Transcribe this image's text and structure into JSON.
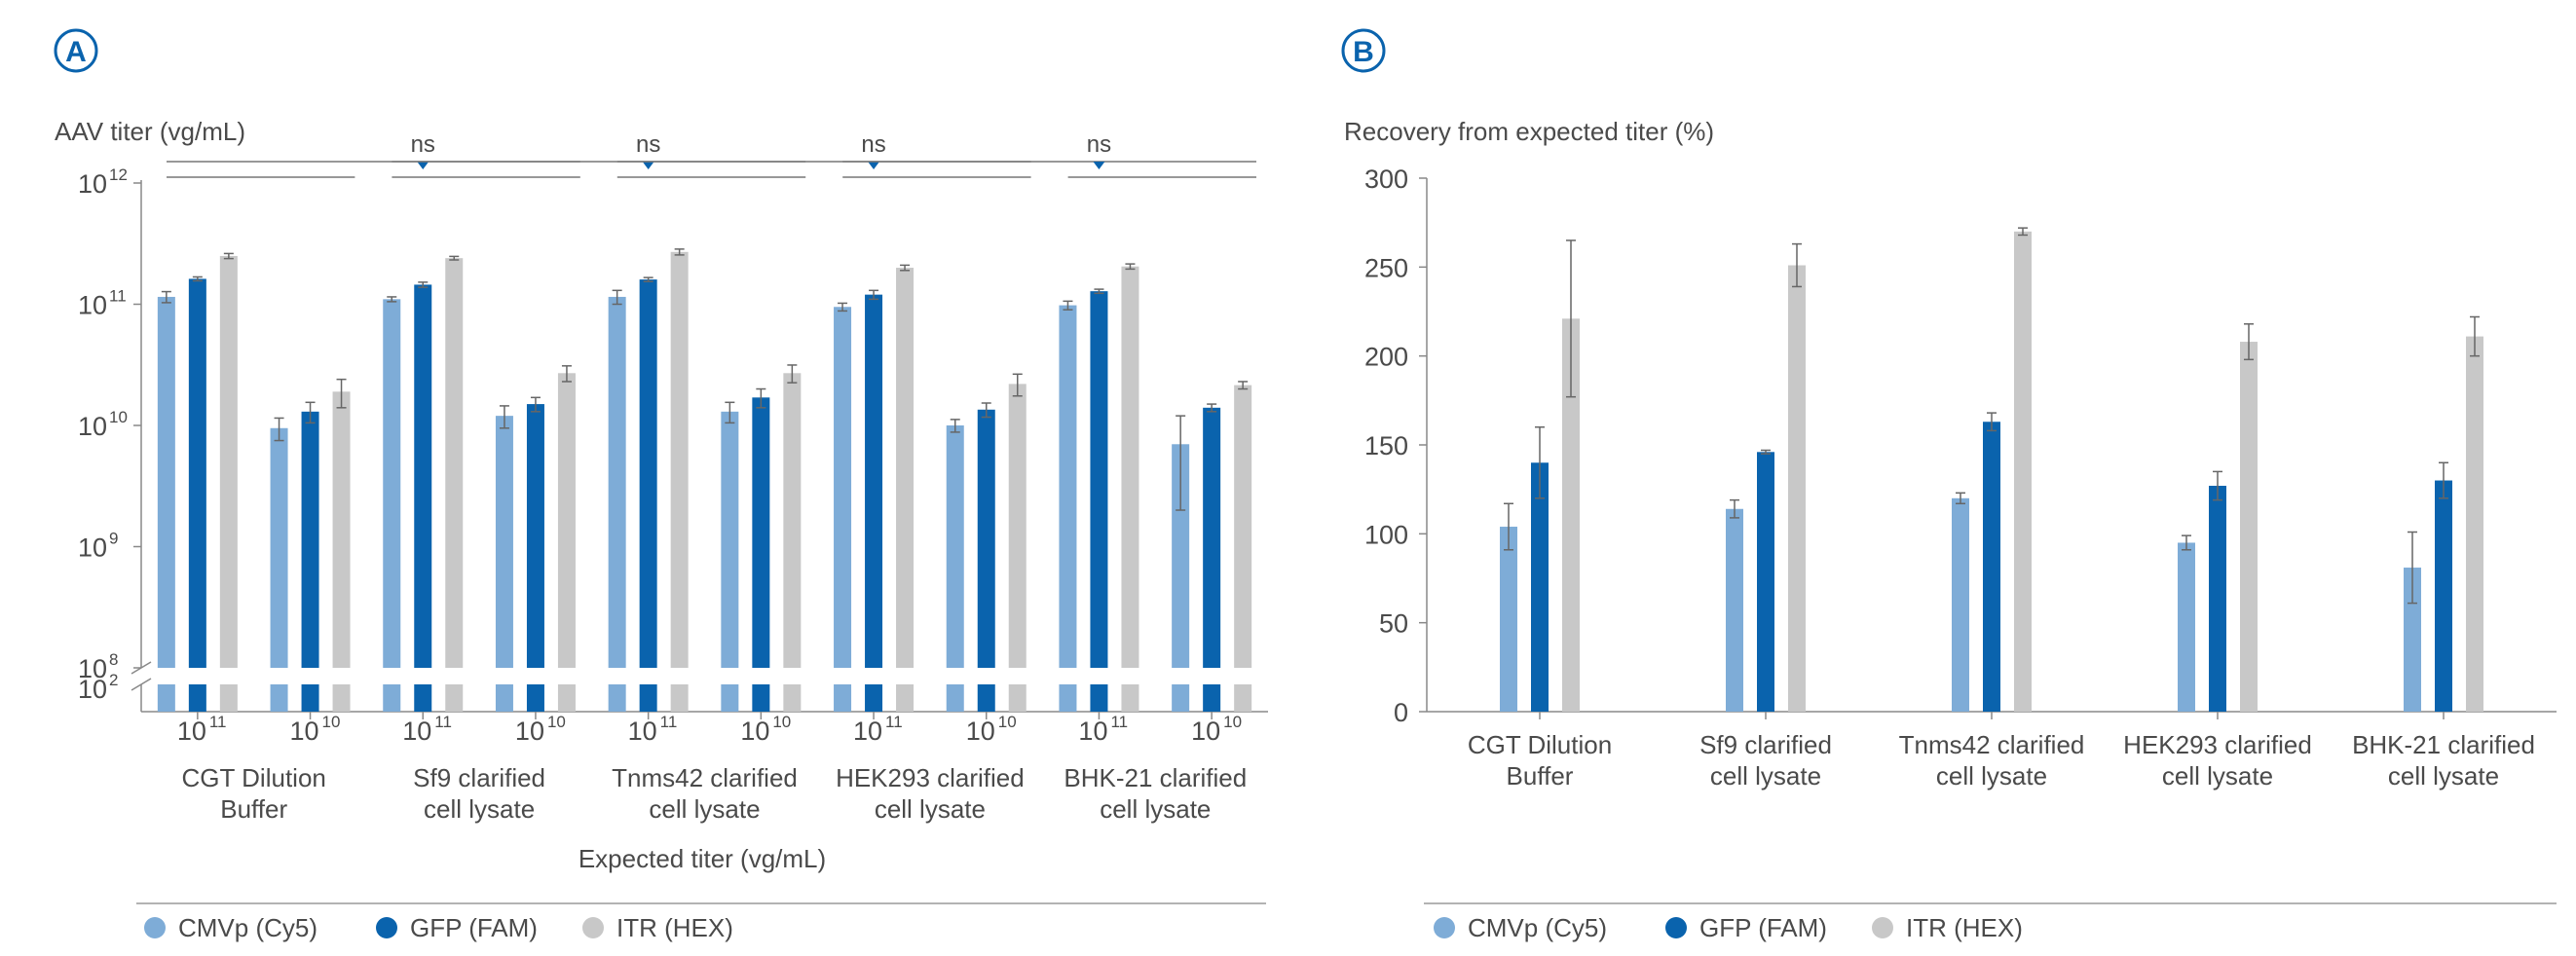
{
  "colors": {
    "cmvp": "#7eacd7",
    "gfp": "#0a63ad",
    "itr": "#c8c8c8",
    "accent": "#0a63ad",
    "axis": "#888888"
  },
  "legend": [
    {
      "label": "CMVp (Cy5)",
      "color": "#7eacd7"
    },
    {
      "label": "GFP (FAM)",
      "color": "#0a63ad"
    },
    {
      "label": "ITR (HEX)",
      "color": "#c8c8c8"
    }
  ],
  "panel_a": {
    "letter": "A",
    "ylabel": "AAV titer (vg/mL)",
    "xlabel": "Expected titer (vg/mL)",
    "y_ticks": [
      "10",
      "10",
      "10",
      "10",
      "10"
    ],
    "y_tick_exps": [
      "12",
      "11",
      "10",
      "9",
      "8"
    ],
    "y_break_tick": "10",
    "y_break_exp": "2",
    "x_ticks": [
      "10",
      "10",
      "10",
      "10",
      "10",
      "10",
      "10",
      "10",
      "10",
      "10"
    ],
    "x_tick_exps": [
      "11",
      "10",
      "11",
      "10",
      "11",
      "10",
      "11",
      "10",
      "11",
      "10"
    ],
    "groups": [
      {
        "line1": "CGT Dilution",
        "line2": "Buffer"
      },
      {
        "line1": "Sf9 clarified",
        "line2": "cell lysate"
      },
      {
        "line1": "Tnms42 clarified",
        "line2": "cell lysate"
      },
      {
        "line1": "HEK293 clarified",
        "line2": "cell lysate"
      },
      {
        "line1": "BHK-21 clarified",
        "line2": "cell lysate"
      }
    ],
    "ns_labels": [
      "ns",
      "ns",
      "ns",
      "ns"
    ]
  },
  "panel_b": {
    "letter": "B",
    "ylabel": "Recovery from expected titer (%)",
    "y_ticks": [
      "300",
      "250",
      "200",
      "150",
      "100",
      "50",
      "0"
    ],
    "groups": [
      {
        "line1": "CGT Dilution",
        "line2": "Buffer"
      },
      {
        "line1": "Sf9 clarified",
        "line2": "cell lysate"
      },
      {
        "line1": "Tnms42 clarified",
        "line2": "cell lysate"
      },
      {
        "line1": "HEK293 clarified",
        "line2": "cell lysate"
      },
      {
        "line1": "BHK-21 clarified",
        "line2": "cell lysate"
      }
    ]
  },
  "chart_data": [
    {
      "type": "bar",
      "yscale": "log",
      "ylim": [
        100000000,
        1000000000000
      ],
      "axis_break": "10^2 to 10^8",
      "categories": [
        "CGT Dilution Buffer 10^11",
        "CGT Dilution Buffer 10^10",
        "Sf9 clarified cell lysate 10^11",
        "Sf9 clarified cell lysate 10^10",
        "Tnms42 clarified cell lysate 10^11",
        "Tnms42 clarified cell lysate 10^10",
        "HEK293 clarified cell lysate 10^11",
        "HEK293 clarified cell lysate 10^10",
        "BHK-21 clarified cell lysate 10^11",
        "BHK-21 clarified cell lysate 10^10"
      ],
      "series": [
        {
          "name": "CMVp (Cy5)",
          "values": [
            115000000000.0,
            9500000000.0,
            110000000000.0,
            12000000000.0,
            115000000000.0,
            13000000000.0,
            95000000000.0,
            10000000000.0,
            98000000000.0,
            7000000000.0
          ],
          "errors": [
            12000000000.0,
            2000000000.0,
            5000000000.0,
            2500000000.0,
            15000000000.0,
            2500000000.0,
            7000000000.0,
            1200000000.0,
            8000000000.0,
            5000000000.0
          ]
        },
        {
          "name": "GFP (FAM)",
          "values": [
            162000000000.0,
            13000000000.0,
            145000000000.0,
            15000000000.0,
            160000000000.0,
            17000000000.0,
            120000000000.0,
            13500000000.0,
            128000000000.0,
            14000000000.0
          ],
          "errors": [
            6000000000.0,
            2500000000.0,
            7000000000.0,
            2000000000.0,
            6000000000.0,
            3000000000.0,
            10000000000.0,
            1800000000.0,
            5000000000.0,
            1000000000.0
          ]
        },
        {
          "name": "ITR (HEX)",
          "values": [
            250000000000.0,
            19000000000.0,
            240000000000.0,
            27000000000.0,
            270000000000.0,
            27000000000.0,
            200000000000.0,
            22000000000.0,
            205000000000.0,
            21500000000.0
          ],
          "errors": [
            12000000000.0,
            5000000000.0,
            8000000000.0,
            4000000000.0,
            15000000000.0,
            4500000000.0,
            10000000000.0,
            4500000000.0,
            10000000000.0,
            1500000000.0
          ]
        }
      ],
      "ylabel": "AAV titer (vg/mL)",
      "xlabel": "Expected titer (vg/mL)",
      "annotations": [
        "ns",
        "ns",
        "ns",
        "ns"
      ],
      "legend": "bottom"
    },
    {
      "type": "bar",
      "ylim": [
        0,
        300
      ],
      "categories": [
        "CGT Dilution Buffer",
        "Sf9 clarified cell lysate",
        "Tnms42 clarified cell lysate",
        "HEK293 clarified cell lysate",
        "BHK-21 clarified cell lysate"
      ],
      "series": [
        {
          "name": "CMVp (Cy5)",
          "values": [
            104,
            114,
            120,
            95,
            81
          ],
          "errors": [
            13,
            5,
            3,
            4,
            20
          ]
        },
        {
          "name": "GFP (FAM)",
          "values": [
            140,
            146,
            163,
            127,
            130
          ],
          "errors": [
            20,
            1,
            5,
            8,
            10
          ]
        },
        {
          "name": "ITR (HEX)",
          "values": [
            221,
            251,
            270,
            208,
            211
          ],
          "errors": [
            44,
            12,
            2,
            10,
            11
          ]
        }
      ],
      "ylabel": "Recovery from expected titer (%)",
      "legend": "bottom"
    }
  ]
}
